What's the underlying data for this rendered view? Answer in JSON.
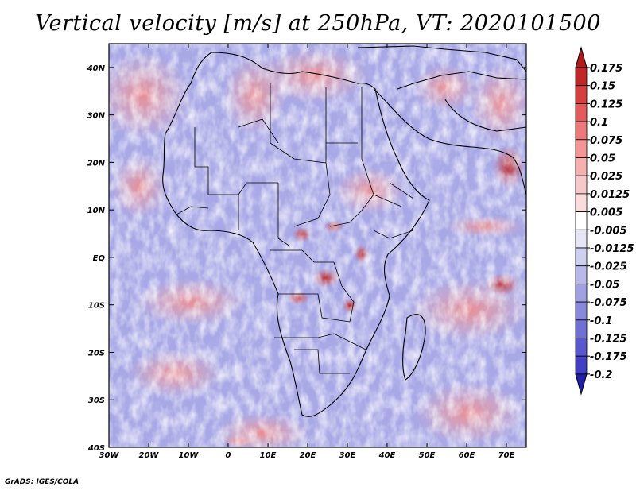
{
  "title": "Vertical velocity [m/s] at 250hPa, VT: 2020101500",
  "credit": "GrADS: IGES/COLA",
  "map": {
    "lon_range": [
      -30,
      75
    ],
    "lat_range": [
      -40,
      45
    ],
    "lat_ticks": [
      {
        "value": 40,
        "label": "40N"
      },
      {
        "value": 30,
        "label": "30N"
      },
      {
        "value": 20,
        "label": "20N"
      },
      {
        "value": 10,
        "label": "10N"
      },
      {
        "value": 0,
        "label": "EQ"
      },
      {
        "value": -10,
        "label": "10S"
      },
      {
        "value": -20,
        "label": "20S"
      },
      {
        "value": -30,
        "label": "30S"
      },
      {
        "value": -40,
        "label": "40S"
      }
    ],
    "lon_ticks": [
      {
        "value": -30,
        "label": "30W"
      },
      {
        "value": -20,
        "label": "20W"
      },
      {
        "value": -10,
        "label": "10W"
      },
      {
        "value": 0,
        "label": "0"
      },
      {
        "value": 10,
        "label": "10E"
      },
      {
        "value": 20,
        "label": "20E"
      },
      {
        "value": 30,
        "label": "30E"
      },
      {
        "value": 40,
        "label": "40E"
      },
      {
        "value": 50,
        "label": "50E"
      },
      {
        "value": 60,
        "label": "60E"
      },
      {
        "value": 70,
        "label": "70E"
      }
    ]
  },
  "colorbar": {
    "levels": [
      {
        "label": "0.175",
        "color": "#c02828"
      },
      {
        "label": "0.15",
        "color": "#d44040"
      },
      {
        "label": "0.125",
        "color": "#e25c5c"
      },
      {
        "label": "0.1",
        "color": "#ec7a7a"
      },
      {
        "label": "0.075",
        "color": "#f29696"
      },
      {
        "label": "0.05",
        "color": "#f6b0b0"
      },
      {
        "label": "0.025",
        "color": "#f8c8c8"
      },
      {
        "label": "0.0125",
        "color": "#fadcdc"
      },
      {
        "label": "0.005",
        "color": "#ffffff"
      },
      {
        "label": "-0.005",
        "color": "#e6e6f6"
      },
      {
        "label": "-0.0125",
        "color": "#cfcff0"
      },
      {
        "label": "-0.025",
        "color": "#b8b8ea"
      },
      {
        "label": "-0.05",
        "color": "#a0a0e2"
      },
      {
        "label": "-0.075",
        "color": "#8888dc"
      },
      {
        "label": "-0.1",
        "color": "#7070d4"
      },
      {
        "label": "-0.125",
        "color": "#5858cc"
      },
      {
        "label": "-0.175",
        "color": "#4040c0"
      },
      {
        "label": "-0.2",
        "color": "#2c2cb0"
      }
    ],
    "top_cap_color": "#b01c1c",
    "bottom_cap_color": "#2020a4"
  }
}
